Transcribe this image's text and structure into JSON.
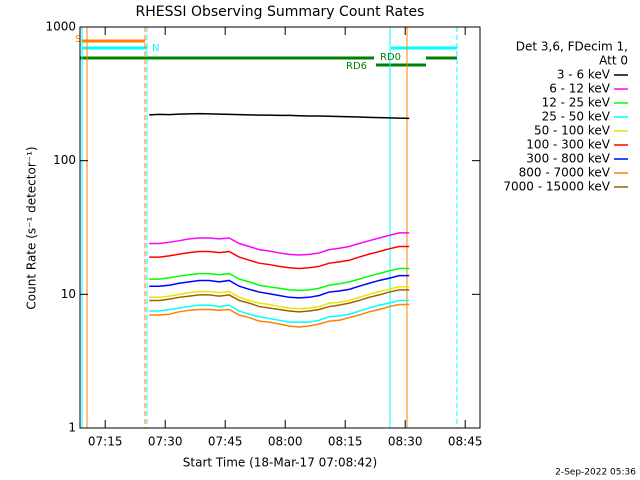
{
  "chart_data": {
    "type": "line",
    "title": "RHESSI Observing Summary Count Rates",
    "xlabel": "Start Time (18-Mar-17 07:08:42)",
    "ylabel": "Count Rate (s⁻¹ detector⁻¹)",
    "legend_title": [
      "Det 3,6, FDecim 1,",
      "Att 0"
    ],
    "annotations": [
      "S",
      "N",
      "RD0",
      "RD6"
    ],
    "footer": "2-Sep-2022 05:36",
    "log_y": true,
    "legend": "outside right",
    "xlim": [
      428.7,
      528.7
    ],
    "xticks": [
      {
        "value": 435,
        "label": "07:15"
      },
      {
        "value": 450,
        "label": "07:30"
      },
      {
        "value": 465,
        "label": "07:45"
      },
      {
        "value": 480,
        "label": "08:00"
      },
      {
        "value": 495,
        "label": "08:15"
      },
      {
        "value": 510,
        "label": "08:30"
      },
      {
        "value": 525,
        "label": "08:45"
      }
    ],
    "ylim": [
      1,
      1000
    ],
    "yticks": [
      1,
      10,
      100,
      1000
    ],
    "x": [
      446,
      448.5,
      451,
      453.5,
      456,
      458.5,
      461,
      463.5,
      466,
      468.5,
      471,
      473.5,
      476,
      478.5,
      481,
      483.5,
      486,
      488.5,
      491,
      493.5,
      496,
      498.5,
      501,
      503.5,
      506,
      508.5,
      511
    ],
    "series": [
      {
        "name": "3 - 6 keV",
        "color": "#000000",
        "values": [
          220,
          222,
          221,
          223,
          224,
          225,
          224,
          223,
          222,
          221,
          220,
          219,
          219,
          218,
          218,
          217,
          216,
          216,
          215,
          214,
          213,
          212,
          211,
          210,
          209,
          208,
          207
        ]
      },
      {
        "name": "6 - 12 keV",
        "color": "#ff00ff",
        "values": [
          24,
          24,
          24.5,
          25.2,
          26,
          26.4,
          26.4,
          26,
          26.4,
          24,
          22.8,
          21.6,
          21.1,
          20.4,
          19.9,
          19.7,
          19.9,
          20.4,
          21.6,
          22.1,
          22.8,
          24,
          25.2,
          26.4,
          27.6,
          28.8,
          28.8
        ]
      },
      {
        "name": "12 - 25 keV",
        "color": "#00ff00",
        "values": [
          13,
          13,
          13.3,
          13.7,
          14,
          14.3,
          14.3,
          14,
          14.3,
          13,
          12.4,
          11.7,
          11.4,
          11.1,
          10.8,
          10.7,
          10.8,
          11.1,
          11.7,
          12,
          12.4,
          13,
          13.7,
          14.3,
          15,
          15.6,
          15.6
        ]
      },
      {
        "name": "25 - 50 keV",
        "color": "#00ffff",
        "values": [
          7.5,
          7.5,
          7.7,
          7.9,
          8.1,
          8.3,
          8.3,
          8.1,
          8.3,
          7.5,
          7.1,
          6.8,
          6.6,
          6.4,
          6.2,
          6.2,
          6.2,
          6.4,
          6.8,
          6.9,
          7.1,
          7.5,
          7.9,
          8.3,
          8.6,
          9,
          9
        ]
      },
      {
        "name": "50 - 100 keV",
        "color": "#e6e600",
        "values": [
          9.5,
          9.5,
          9.7,
          10,
          10.3,
          10.5,
          10.5,
          10.3,
          10.5,
          9.5,
          9,
          8.6,
          8.4,
          8.1,
          7.9,
          7.8,
          7.9,
          8.1,
          8.6,
          8.7,
          9,
          9.5,
          10,
          10.5,
          10.9,
          11.4,
          11.4
        ]
      },
      {
        "name": "100 - 300 keV",
        "color": "#ff0000",
        "values": [
          19,
          19,
          19.4,
          20,
          20.5,
          20.9,
          20.9,
          20.5,
          20.9,
          19,
          18,
          17.1,
          16.7,
          16.2,
          15.8,
          15.6,
          15.8,
          16.2,
          17.1,
          17.5,
          18,
          19,
          20,
          20.9,
          21.9,
          22.8,
          22.8
        ]
      },
      {
        "name": "300 - 800 keV",
        "color": "#0000ff",
        "values": [
          11.5,
          11.5,
          11.7,
          12.1,
          12.4,
          12.7,
          12.7,
          12.4,
          12.7,
          11.5,
          10.9,
          10.4,
          10.1,
          9.8,
          9.5,
          9.4,
          9.5,
          9.8,
          10.4,
          10.6,
          10.9,
          11.5,
          12.1,
          12.7,
          13.2,
          13.8,
          13.8
        ]
      },
      {
        "name": "800 - 7000 keV",
        "color": "#ff8000",
        "values": [
          7,
          7,
          7.1,
          7.4,
          7.6,
          7.7,
          7.7,
          7.6,
          7.7,
          7,
          6.7,
          6.3,
          6.2,
          6,
          5.8,
          5.7,
          5.8,
          6,
          6.3,
          6.4,
          6.7,
          7,
          7.4,
          7.7,
          8.1,
          8.4,
          8.4
        ]
      },
      {
        "name": "7000 - 15000 keV",
        "color": "#a06000",
        "values": [
          9,
          9,
          9.2,
          9.5,
          9.7,
          9.9,
          9.9,
          9.7,
          9.9,
          9,
          8.6,
          8.1,
          7.9,
          7.7,
          7.5,
          7.4,
          7.5,
          7.7,
          8.1,
          8.3,
          8.6,
          9,
          9.5,
          9.9,
          10.4,
          10.8,
          10.8
        ]
      }
    ]
  }
}
